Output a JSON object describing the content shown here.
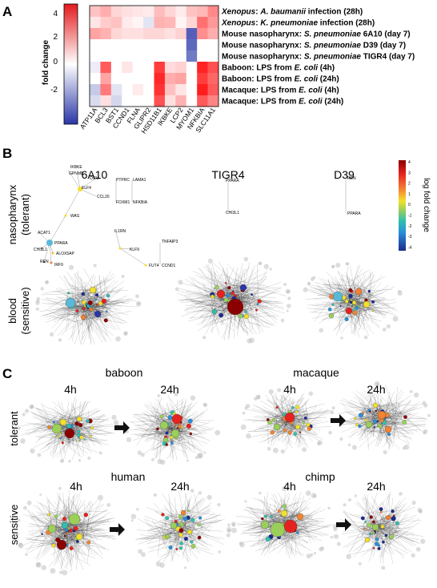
{
  "panels": {
    "a": "A",
    "b": "B",
    "c": "C"
  },
  "heatmap": {
    "colorbar_title": "fold change",
    "colorbar_ticks": [
      4,
      2,
      0,
      -2
    ],
    "rows": [
      {
        "species": "Xenopus",
        "rest": ": ",
        "pathogen": "A. baumanii",
        "tail": " infection (28h)"
      },
      {
        "species": "Xenopus",
        "rest": ": ",
        "pathogen": "K. pneumoniae",
        "tail": " infection (28h)"
      },
      {
        "species": "",
        "rest": "Mouse nasopharynx: ",
        "pathogen": "S. pneumoniae",
        "tail": " 6A10 (day 7)"
      },
      {
        "species": "",
        "rest": "Mouse nasopharynx: ",
        "pathogen": "S. pneumoniae",
        "tail": " D39 (day 7)"
      },
      {
        "species": "",
        "rest": "Mouse nasopharynx: ",
        "pathogen": "S. pneumoniae",
        "tail": " TIGR4 (day 7)"
      },
      {
        "species": "",
        "rest": "Baboon: LPS from ",
        "pathogen": "E. coli",
        "tail": " (4h)"
      },
      {
        "species": "",
        "rest": "Baboon: LPS from ",
        "pathogen": "E. coli",
        "tail": " (24h)"
      },
      {
        "species": "",
        "rest": "Macaque: LPS from ",
        "pathogen": "E. coli",
        "tail": " (4h)"
      },
      {
        "species": "",
        "rest": "Macaque: LPS from ",
        "pathogen": "E. coli",
        "tail": " (24h)"
      }
    ],
    "genes": [
      "ATP11A",
      "BCL3",
      "BST1",
      "CCND1",
      "FLNA",
      "GLIPR2",
      "HSD11B1",
      "IKBKE",
      "LCP2",
      "MYOM1",
      "NFKBIA",
      "SLC11A1"
    ],
    "values": [
      [
        1.2,
        1.6,
        0.8,
        0.6,
        0.5,
        0.4,
        1.3,
        0.8,
        0.4,
        1.2,
        1.4,
        2.3
      ],
      [
        0.5,
        1.0,
        1.2,
        0.4,
        0.2,
        -0.6,
        1.5,
        1.4,
        0.2,
        0.8,
        2.8,
        2.0
      ],
      [
        1.8,
        1.5,
        0.8,
        0.6,
        0.6,
        0.8,
        0.8,
        0.6,
        0.9,
        -3.6,
        2.2,
        1.6
      ],
      [
        0.0,
        0.0,
        0.0,
        0.0,
        0.0,
        0.0,
        0.0,
        0.0,
        0.0,
        -3.4,
        0.0,
        0.0
      ],
      [
        0.0,
        0.0,
        0.0,
        0.0,
        0.0,
        0.0,
        0.0,
        0.0,
        0.0,
        -3.0,
        0.0,
        0.0
      ],
      [
        -0.4,
        3.2,
        0.0,
        0.5,
        0.0,
        0.0,
        3.8,
        0.7,
        0.9,
        0.0,
        4.3,
        3.4
      ],
      [
        0.0,
        1.8,
        0.0,
        0.0,
        0.0,
        0.0,
        4.2,
        1.6,
        1.8,
        0.0,
        3.8,
        3.0
      ],
      [
        -1.2,
        2.6,
        -0.6,
        0.0,
        0.4,
        0.0,
        4.0,
        1.2,
        0.5,
        0.0,
        4.4,
        3.2
      ],
      [
        -0.8,
        0.6,
        -0.9,
        0.0,
        0.0,
        0.0,
        3.4,
        0.6,
        1.5,
        0.0,
        3.2,
        2.4
      ]
    ]
  },
  "panel_b": {
    "columns": [
      "6A10",
      "TIGR4",
      "D39"
    ],
    "row_labels": [
      [
        "nasopharynx",
        "(tolerant)"
      ],
      [
        "blood",
        "(sensitive)"
      ]
    ],
    "legend_title": "log fold change",
    "legend_ticks": [
      "4",
      "3",
      "2",
      "1",
      "0",
      "-1",
      "-2",
      "-3",
      "-4"
    ],
    "genes_6a10": [
      "IKBKE",
      "GPNMB",
      "OSM",
      "ELF4",
      "CCL20",
      "PTPRC",
      "LAMA1",
      "FOXM1",
      "NFKBIA",
      "WAS",
      "ACAT1",
      "PPARA",
      "CHI3L1",
      "ALOX5AP",
      "REN",
      "IRF9",
      "IL1RN",
      "KLF9",
      "FUT4",
      "TNFAIP3",
      "CCND1"
    ],
    "genes_tigr4": [
      "PPARA",
      "CHI3L1"
    ],
    "genes_d39": [
      "REN",
      "PPARA"
    ]
  },
  "panel_c": {
    "row_labels": [
      "tolerant",
      "sensitive"
    ],
    "species": [
      "baboon",
      "macaque",
      "human",
      "chimp"
    ],
    "timepoints": [
      "4h",
      "24h"
    ]
  },
  "colors": {
    "high": "#d7191c",
    "low": "#2c3e9f",
    "mid": "#ffffff"
  }
}
